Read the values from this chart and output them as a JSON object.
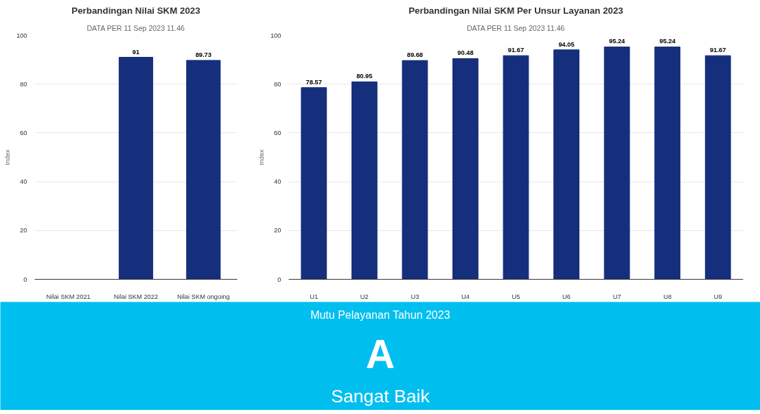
{
  "chart_data": [
    {
      "type": "bar",
      "title": "Perbandingan Nilai SKM 2023",
      "subtitle": "DATA PER 11 Sep 2023 11.46",
      "ylabel": "Index",
      "categories": [
        "Nilai SKM 2021",
        "Nilai SKM 2022",
        "Nilai SKM ongoing"
      ],
      "values": [
        null,
        91,
        89.73
      ],
      "color": "#152f7c",
      "ylim": [
        0,
        100
      ],
      "yticks": [
        0,
        20,
        40,
        60,
        80,
        100
      ],
      "grid": "y",
      "data_labels": true
    },
    {
      "type": "bar",
      "title": "Perbandingan Nilai SKM Per Unsur Layanan 2023",
      "subtitle": "DATA PER 11 Sep 2023 11.46",
      "ylabel": "Index",
      "categories": [
        "U1",
        "U2",
        "U3",
        "U4",
        "U5",
        "U6",
        "U7",
        "U8",
        "U9"
      ],
      "values": [
        78.57,
        80.95,
        89.68,
        90.48,
        91.67,
        94.05,
        95.24,
        95.24,
        91.67
      ],
      "color": "#152f7c",
      "ylim": [
        0,
        100
      ],
      "yticks": [
        0,
        20,
        40,
        60,
        80,
        100
      ],
      "grid": "y",
      "data_labels": true
    },
    {
      "type": "other",
      "title": "Mutu Pelayanan Tahun 2023",
      "annotations": [
        "A",
        "Sangat Baik"
      ],
      "color": "#00bfef"
    }
  ]
}
